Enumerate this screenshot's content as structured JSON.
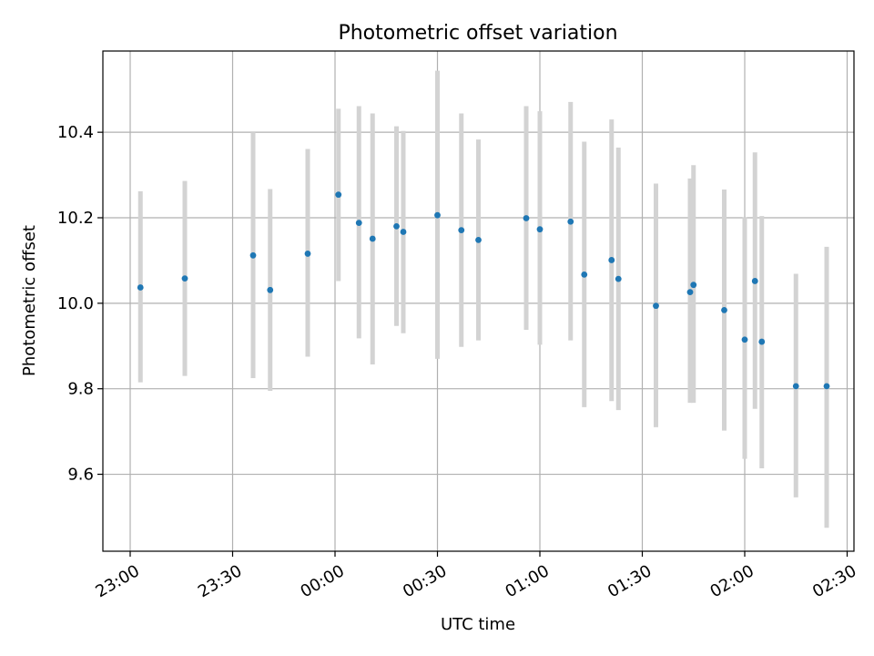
{
  "chart_data": {
    "type": "scatter",
    "title": "Photometric offset variation",
    "xlabel": "UTC time",
    "ylabel": "Photometric offset",
    "x_ticks": [
      "23:00",
      "23:30",
      "00:00",
      "00:30",
      "01:00",
      "01:30",
      "02:00",
      "02:30"
    ],
    "y_ticks": [
      "9.6",
      "9.8",
      "10.0",
      "10.2",
      "10.4"
    ],
    "xlim": [
      "22:52",
      "02:32"
    ],
    "ylim": [
      9.42,
      10.59
    ],
    "grid": true,
    "legend": "none",
    "colors": {
      "points": "#1f77b4",
      "errorbars": "#d3d3d3",
      "grid": "#b0b0b0"
    },
    "series": [
      {
        "x": [
          "23:03",
          "23:16",
          "23:36",
          "23:41",
          "23:52",
          "00:01",
          "00:07",
          "00:11",
          "00:18",
          "00:20",
          "00:30",
          "00:37",
          "00:42",
          "00:56",
          "01:00",
          "01:09",
          "01:13",
          "01:21",
          "01:23",
          "01:34",
          "01:44",
          "01:45",
          "01:54",
          "02:00",
          "02:03",
          "02:05",
          "02:15",
          "02:24"
        ],
        "y": [
          10.037,
          10.058,
          10.112,
          10.031,
          10.116,
          10.254,
          10.188,
          10.151,
          10.18,
          10.167,
          10.206,
          10.171,
          10.148,
          10.199,
          10.173,
          10.191,
          10.067,
          10.101,
          10.057,
          9.994,
          10.026,
          10.043,
          9.984,
          9.915,
          10.052,
          9.91,
          9.806,
          9.806
        ],
        "yerr_low": [
          9.815,
          9.83,
          9.825,
          9.795,
          9.875,
          10.052,
          9.918,
          9.857,
          9.947,
          9.93,
          9.87,
          9.898,
          9.913,
          9.938,
          9.903,
          9.913,
          9.757,
          9.771,
          9.75,
          9.71,
          9.767,
          9.767,
          9.702,
          9.636,
          9.753,
          9.614,
          9.546,
          9.475
        ],
        "yerr_high": [
          10.262,
          10.286,
          10.4,
          10.267,
          10.361,
          10.455,
          10.461,
          10.444,
          10.414,
          10.403,
          10.544,
          10.444,
          10.383,
          10.461,
          10.449,
          10.471,
          10.378,
          10.43,
          10.364,
          10.28,
          10.292,
          10.323,
          10.266,
          10.201,
          10.353,
          10.204,
          10.069,
          10.132
        ]
      }
    ]
  }
}
